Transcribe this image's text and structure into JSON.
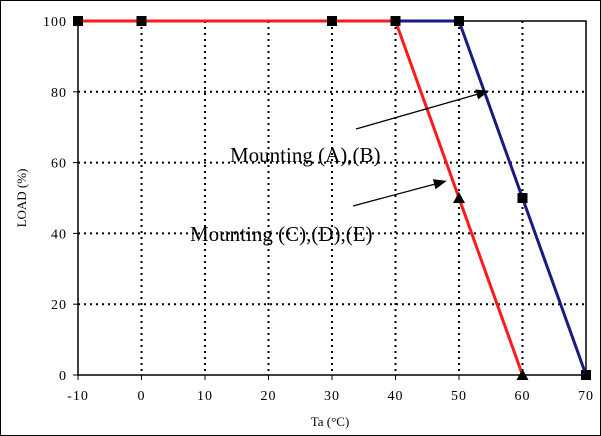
{
  "chart_data": {
    "type": "line",
    "xlabel": "Ta (°C)",
    "ylabel": "LOAD (%)",
    "xlim": [
      -10,
      70
    ],
    "ylim": [
      0,
      100
    ],
    "x_ticks": [
      -10,
      0,
      10,
      20,
      30,
      40,
      50,
      60,
      70
    ],
    "y_ticks": [
      0,
      20,
      40,
      60,
      80,
      100
    ],
    "x_tick_labels": [
      "-10",
      "0",
      "10",
      "20",
      "30",
      "40",
      "50",
      "60",
      "70"
    ],
    "y_tick_labels": [
      "0",
      "20",
      "40",
      "60",
      "80",
      "100"
    ],
    "grid": "dotted",
    "series": [
      {
        "color": "#1a1a80",
        "marker": "square",
        "x": [
          -10,
          0,
          30,
          40,
          50,
          60,
          70
        ],
        "y": [
          100,
          100,
          100,
          100,
          100,
          50,
          0
        ]
      },
      {
        "color": "#ff1a1a",
        "marker": "square-then-triangle",
        "x": [
          -10,
          0,
          30,
          40,
          50,
          60
        ],
        "y": [
          100,
          100,
          100,
          100,
          50,
          0
        ]
      }
    ],
    "annotations": [
      {
        "text": "Mounting (A),(B)",
        "arrow_to": [
          55.5,
          81
        ]
      },
      {
        "text": "Mounting (C),(D),(E)",
        "arrow_to": [
          48.5,
          57
        ]
      }
    ]
  }
}
